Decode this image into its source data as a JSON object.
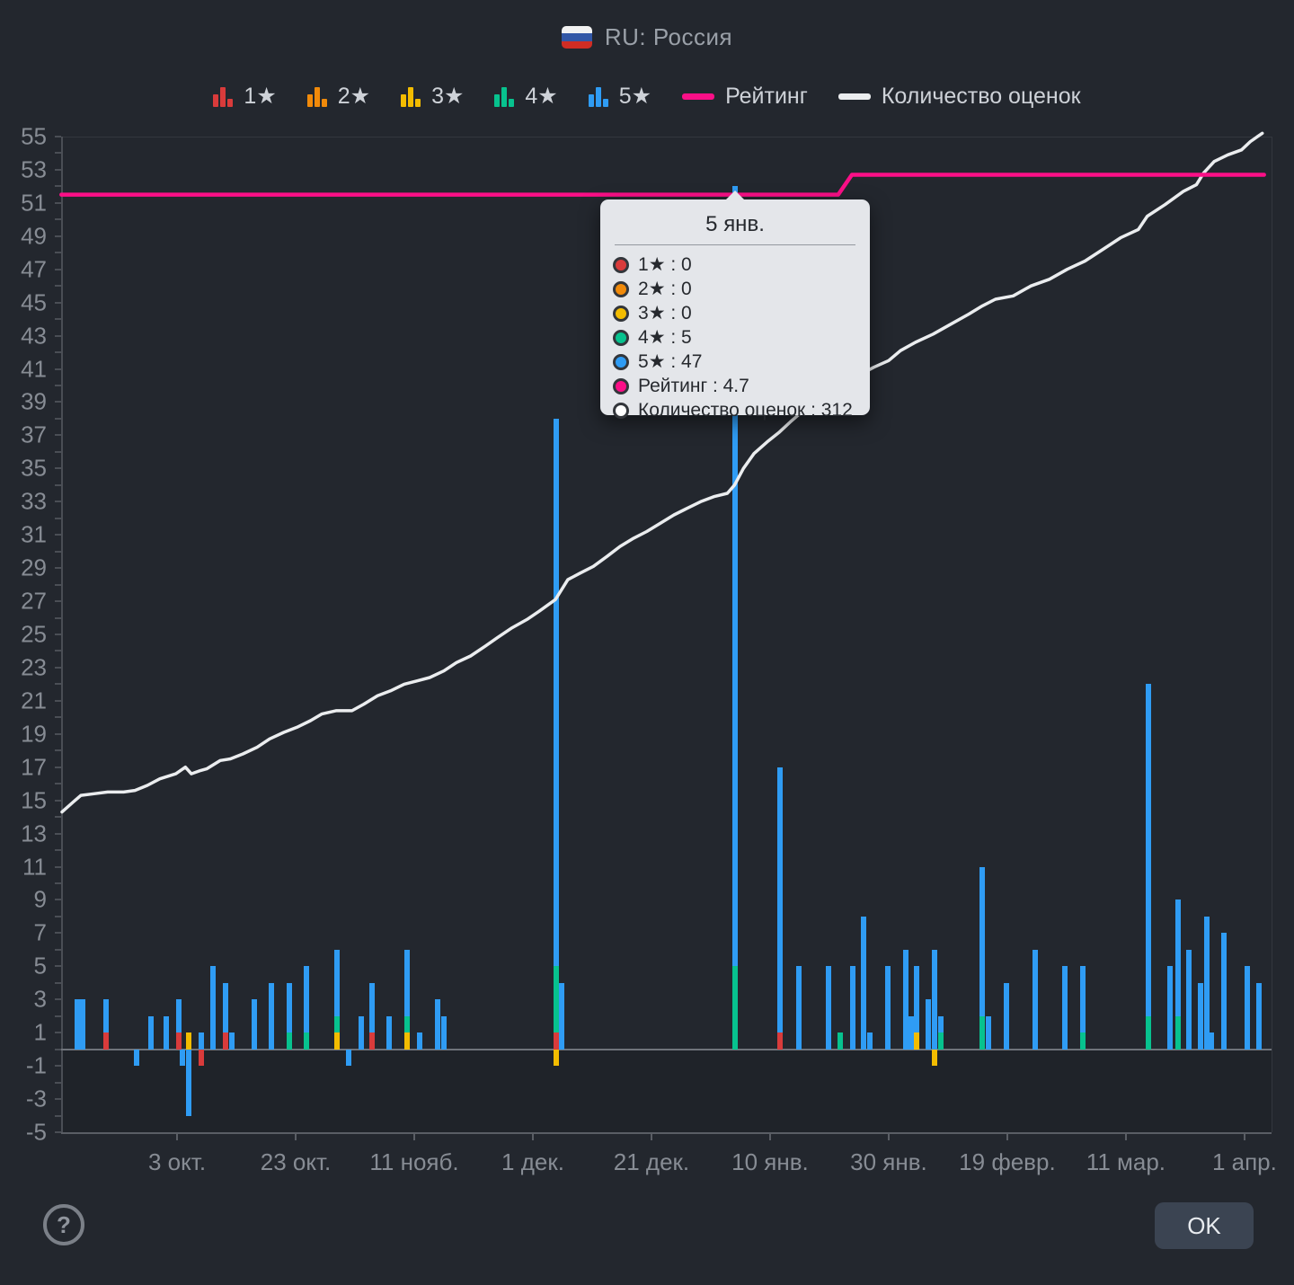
{
  "header": {
    "title": "RU: Россия",
    "flag_colors": [
      "#f2f2f2",
      "#3257a6",
      "#d02d24"
    ]
  },
  "legend": {
    "star_series": [
      {
        "label": "1★",
        "color": "#d93b3b"
      },
      {
        "label": "2★",
        "color": "#f18a0a"
      },
      {
        "label": "3★",
        "color": "#f3bc00"
      },
      {
        "label": "4★",
        "color": "#07c28e"
      },
      {
        "label": "5★",
        "color": "#2f9cf4"
      }
    ],
    "line_series": [
      {
        "label": "Рейтинг",
        "color": "#fb0f87"
      },
      {
        "label": "Количество оценок",
        "color": "#ebedef"
      }
    ]
  },
  "tooltip": {
    "title": "5 янв.",
    "sep": " : ",
    "rows": [
      {
        "label": "1★",
        "value": "0",
        "color": "#d93b3b",
        "hollow": false
      },
      {
        "label": "2★",
        "value": "0",
        "color": "#f18a0a",
        "hollow": false
      },
      {
        "label": "3★",
        "value": "0",
        "color": "#f3bc00",
        "hollow": false
      },
      {
        "label": "4★",
        "value": "5",
        "color": "#07c28e",
        "hollow": false
      },
      {
        "label": "5★",
        "value": "47",
        "color": "#2f9cf4",
        "hollow": false
      },
      {
        "label": "Рейтинг",
        "value": "4.7",
        "color": "#fb0f87",
        "hollow": false
      },
      {
        "label": "Количество оценок",
        "value": "312",
        "color": "#ffffff",
        "hollow": true
      }
    ]
  },
  "footer": {
    "ok_label": "OK",
    "help_glyph": "?"
  },
  "chart_data": {
    "type": "mixed: stacked bar (daily ratings by star) + line (rating) + line (cumulative rating count)",
    "y_axis": {
      "min": -5,
      "max": 55,
      "label_step": 2,
      "minor_step": 1,
      "labels": [
        "55",
        "53",
        "51",
        "49",
        "47",
        "45",
        "43",
        "41",
        "39",
        "37",
        "35",
        "33",
        "31",
        "29",
        "27",
        "25",
        "23",
        "21",
        "19",
        "17",
        "15",
        "13",
        "11",
        "9",
        "7",
        "5",
        "3",
        "1",
        "-1",
        "-3",
        "-5"
      ]
    },
    "x_axis": {
      "note": "day slots, slot 0 = 14 сент., one tick per 20 slots",
      "ticks": [
        {
          "day": 19,
          "label": "3 окт."
        },
        {
          "day": 39,
          "label": "23 окт."
        },
        {
          "day": 59,
          "label": "11 нояб."
        },
        {
          "day": 79,
          "label": "1 дек."
        },
        {
          "day": 99,
          "label": "21 дек."
        },
        {
          "day": 119,
          "label": "10 янв."
        },
        {
          "day": 139,
          "label": "30 янв."
        },
        {
          "day": 159,
          "label": "19 февр."
        },
        {
          "day": 179,
          "label": "11 мар."
        },
        {
          "day": 199,
          "label": "1 апр."
        }
      ]
    },
    "bar_colors": [
      "#d93b3b",
      "#f18a0a",
      "#f3bc00",
      "#07c28e",
      "#2f9cf4"
    ],
    "bar_series_labels": [
      "1★",
      "2★",
      "3★",
      "4★",
      "5★"
    ],
    "bars": [
      {
        "day": 2.2,
        "date": "16 сент.",
        "counts": [
          0,
          0,
          0,
          0,
          3
        ]
      },
      {
        "day": 3.1,
        "date": "17 сент.",
        "counts": [
          0,
          0,
          0,
          0,
          3
        ]
      },
      {
        "day": 7,
        "date": "21 сент.",
        "counts": [
          1,
          0,
          0,
          0,
          2
        ]
      },
      {
        "day": 12.2,
        "date": "26 сент.",
        "counts": [
          0,
          0,
          0,
          0,
          -1
        ]
      },
      {
        "day": 14.6,
        "date": "29 сент.",
        "counts": [
          0,
          0,
          0,
          0,
          2
        ]
      },
      {
        "day": 17.2,
        "date": "1 окт.",
        "counts": [
          0,
          0,
          0,
          0,
          2
        ]
      },
      {
        "day": 19.3,
        "date": "3 окт.",
        "counts": [
          1,
          0,
          0,
          0,
          2
        ]
      },
      {
        "day": 19.9,
        "date": "4 окт.",
        "counts": [
          0,
          0,
          0,
          0,
          -1
        ]
      },
      {
        "day": 21,
        "date": "5 окт.",
        "counts": [
          0,
          0,
          1,
          0,
          -4
        ]
      },
      {
        "day": 23.1,
        "date": "7 окт.",
        "counts": [
          -1,
          0,
          0,
          0,
          1
        ]
      },
      {
        "day": 25.1,
        "date": "9 окт.",
        "counts": [
          0,
          0,
          0,
          0,
          5
        ]
      },
      {
        "day": 27.2,
        "date": "11 окт.",
        "counts": [
          1,
          0,
          0,
          0,
          3
        ]
      },
      {
        "day": 28.2,
        "date": "12 окт.",
        "counts": [
          0,
          0,
          0,
          0,
          1
        ]
      },
      {
        "day": 32,
        "date": "16 окт.",
        "counts": [
          0,
          0,
          0,
          0,
          3
        ]
      },
      {
        "day": 34.9,
        "date": "19 окт.",
        "counts": [
          0,
          0,
          0,
          0,
          4
        ]
      },
      {
        "day": 37.9,
        "date": "22 окт.",
        "counts": [
          0,
          0,
          0,
          1,
          3
        ]
      },
      {
        "day": 40.8,
        "date": "25 окт.",
        "counts": [
          0,
          0,
          0,
          1,
          4
        ]
      },
      {
        "day": 46,
        "date": "30 окт.",
        "counts": [
          0,
          0,
          1,
          1,
          4
        ]
      },
      {
        "day": 47.9,
        "date": "1 нояб.",
        "counts": [
          0,
          0,
          0,
          0,
          -1
        ]
      },
      {
        "day": 50.1,
        "date": "3 нояб.",
        "counts": [
          0,
          0,
          0,
          0,
          2
        ]
      },
      {
        "day": 51.9,
        "date": "5 нояб.",
        "counts": [
          1,
          0,
          0,
          0,
          3
        ]
      },
      {
        "day": 54.8,
        "date": "8 нояб.",
        "counts": [
          0,
          0,
          0,
          0,
          2
        ]
      },
      {
        "day": 57.8,
        "date": "11 нояб.",
        "counts": [
          0,
          0,
          1,
          1,
          4
        ]
      },
      {
        "day": 59.9,
        "date": "13 нояб.",
        "counts": [
          0,
          0,
          0,
          0,
          1
        ]
      },
      {
        "day": 62.9,
        "date": "16 нояб.",
        "counts": [
          0,
          0,
          0,
          0,
          3
        ]
      },
      {
        "day": 64,
        "date": "17 нояб.",
        "counts": [
          0,
          0,
          0,
          0,
          2
        ]
      },
      {
        "day": 82.9,
        "date": "6 дек.",
        "counts": [
          1,
          0,
          -1,
          4,
          33
        ]
      },
      {
        "day": 83.8,
        "date": "7 дек.",
        "counts": [
          0,
          0,
          0,
          0,
          4
        ]
      },
      {
        "day": 113.1,
        "date": "5 янв.",
        "counts": [
          0,
          0,
          0,
          5,
          47
        ]
      },
      {
        "day": 120.7,
        "date": "13 янв.",
        "counts": [
          1,
          0,
          0,
          0,
          16
        ]
      },
      {
        "day": 123.8,
        "date": "16 янв.",
        "counts": [
          0,
          0,
          0,
          0,
          5
        ]
      },
      {
        "day": 128.8,
        "date": "21 янв.",
        "counts": [
          0,
          0,
          0,
          0,
          5
        ]
      },
      {
        "day": 130.8,
        "date": "23 янв.",
        "counts": [
          0,
          0,
          0,
          1,
          0
        ]
      },
      {
        "day": 132.9,
        "date": "25 янв.",
        "counts": [
          0,
          0,
          0,
          0,
          5
        ]
      },
      {
        "day": 134.8,
        "date": "27 янв.",
        "counts": [
          0,
          0,
          0,
          0,
          8
        ]
      },
      {
        "day": 135.8,
        "date": "28 янв.",
        "counts": [
          0,
          0,
          0,
          0,
          1
        ]
      },
      {
        "day": 138.8,
        "date": "31 янв.",
        "counts": [
          0,
          0,
          0,
          0,
          5
        ]
      },
      {
        "day": 141.9,
        "date": "3 февр.",
        "counts": [
          0,
          0,
          0,
          0,
          6
        ]
      },
      {
        "day": 142.8,
        "date": "4 февр.",
        "counts": [
          0,
          0,
          0,
          0,
          2
        ]
      },
      {
        "day": 143.7,
        "date": "5 февр.",
        "counts": [
          0,
          0,
          1,
          0,
          4
        ]
      },
      {
        "day": 145.7,
        "date": "7 февр.",
        "counts": [
          0,
          0,
          0,
          0,
          3
        ]
      },
      {
        "day": 146.7,
        "date": "8 февр.",
        "counts": [
          0,
          0,
          -1,
          0,
          6
        ]
      },
      {
        "day": 147.8,
        "date": "9 февр.",
        "counts": [
          0,
          0,
          0,
          1,
          1
        ]
      },
      {
        "day": 154.8,
        "date": "16 февр.",
        "counts": [
          0,
          0,
          0,
          2,
          9
        ]
      },
      {
        "day": 155.8,
        "date": "17 февр.",
        "counts": [
          0,
          0,
          0,
          0,
          2
        ]
      },
      {
        "day": 158.8,
        "date": "20 февр.",
        "counts": [
          0,
          0,
          0,
          0,
          4
        ]
      },
      {
        "day": 163.7,
        "date": "25 февр.",
        "counts": [
          0,
          0,
          0,
          0,
          6
        ]
      },
      {
        "day": 168.7,
        "date": "2 мар.",
        "counts": [
          0,
          0,
          0,
          0,
          5
        ]
      },
      {
        "day": 171.7,
        "date": "5 мар.",
        "counts": [
          0,
          0,
          0,
          1,
          4
        ]
      },
      {
        "day": 182.8,
        "date": "16 мар.",
        "counts": [
          0,
          0,
          0,
          2,
          20
        ]
      },
      {
        "day": 186.5,
        "date": "20 мар.",
        "counts": [
          0,
          0,
          0,
          0,
          5
        ]
      },
      {
        "day": 187.8,
        "date": "21 мар.",
        "counts": [
          0,
          0,
          0,
          2,
          7
        ]
      },
      {
        "day": 189.6,
        "date": "23 мар.",
        "counts": [
          0,
          0,
          0,
          0,
          6
        ]
      },
      {
        "day": 191.6,
        "date": "24 мар.",
        "counts": [
          0,
          0,
          0,
          0,
          4
        ]
      },
      {
        "day": 192.6,
        "date": "25 мар.",
        "counts": [
          0,
          0,
          0,
          0,
          8
        ]
      },
      {
        "day": 193.4,
        "date": "26 мар.",
        "counts": [
          0,
          0,
          0,
          0,
          1
        ]
      },
      {
        "day": 195.5,
        "date": "28 мар.",
        "counts": [
          0,
          0,
          0,
          0,
          7
        ]
      },
      {
        "day": 199.4,
        "date": "1 апр.",
        "counts": [
          0,
          0,
          0,
          0,
          5
        ]
      },
      {
        "day": 201.4,
        "date": "3 апр.",
        "counts": [
          0,
          0,
          0,
          0,
          4
        ]
      }
    ],
    "rating_line": {
      "label": "Рейтинг",
      "color": "#fb0f87",
      "rating_before_step": 4.7,
      "rating_after_step": 4.8,
      "points_axis_units": [
        [
          -0.5,
          51.5
        ],
        [
          130.5,
          51.5
        ],
        [
          132.8,
          52.7
        ],
        [
          202.3,
          52.7
        ]
      ]
    },
    "count_line": {
      "label": "Количество оценок",
      "color": "#ebedef",
      "value_at_tooltip_day": 312,
      "points_axis_units": [
        [
          -0.4,
          14.3
        ],
        [
          1.5,
          14.9
        ],
        [
          2.8,
          15.3
        ],
        [
          5,
          15.4
        ],
        [
          7.3,
          15.5
        ],
        [
          10,
          15.5
        ],
        [
          11.9,
          15.6
        ],
        [
          14,
          15.9
        ],
        [
          16.1,
          16.3
        ],
        [
          18.8,
          16.6
        ],
        [
          20.4,
          17.0
        ],
        [
          21.4,
          16.6
        ],
        [
          23,
          16.8
        ],
        [
          24,
          16.9
        ],
        [
          26.3,
          17.4
        ],
        [
          28,
          17.5
        ],
        [
          30.1,
          17.8
        ],
        [
          32.5,
          18.2
        ],
        [
          34.6,
          18.7
        ],
        [
          37,
          19.1
        ],
        [
          39.2,
          19.4
        ],
        [
          41.5,
          19.8
        ],
        [
          43.4,
          20.2
        ],
        [
          45.8,
          20.4
        ],
        [
          48.5,
          20.4
        ],
        [
          50.5,
          20.8
        ],
        [
          52.8,
          21.3
        ],
        [
          55,
          21.6
        ],
        [
          57.3,
          22.0
        ],
        [
          59.5,
          22.2
        ],
        [
          61.6,
          22.4
        ],
        [
          64,
          22.8
        ],
        [
          66.1,
          23.3
        ],
        [
          68.5,
          23.7
        ],
        [
          71,
          24.3
        ],
        [
          73,
          24.8
        ],
        [
          75.5,
          25.4
        ],
        [
          78,
          25.9
        ],
        [
          80.1,
          26.4
        ],
        [
          82.8,
          27.1
        ],
        [
          84.9,
          28.3
        ],
        [
          87,
          28.7
        ],
        [
          89.2,
          29.1
        ],
        [
          91.5,
          29.7
        ],
        [
          93.7,
          30.3
        ],
        [
          96,
          30.8
        ],
        [
          98.2,
          31.2
        ],
        [
          100.5,
          31.7
        ],
        [
          102.8,
          32.2
        ],
        [
          105,
          32.6
        ],
        [
          107.3,
          33.0
        ],
        [
          109.5,
          33.3
        ],
        [
          111.8,
          33.5
        ],
        [
          113,
          34.0
        ],
        [
          114.5,
          35.0
        ],
        [
          116.3,
          35.9
        ],
        [
          118.5,
          36.6
        ],
        [
          120.6,
          37.2
        ],
        [
          122.4,
          37.8
        ],
        [
          124,
          38.3
        ],
        [
          125.4,
          38.7
        ],
        [
          127,
          38.9
        ],
        [
          128.4,
          39.0
        ],
        [
          130,
          39.4
        ],
        [
          131.4,
          39.8
        ],
        [
          133,
          40.2
        ],
        [
          134.4,
          40.7
        ],
        [
          136.5,
          41.1
        ],
        [
          139,
          41.5
        ],
        [
          141,
          42.1
        ],
        [
          143.5,
          42.6
        ],
        [
          146.5,
          43.1
        ],
        [
          149.5,
          43.7
        ],
        [
          152.5,
          44.3
        ],
        [
          154.8,
          44.8
        ],
        [
          157,
          45.2
        ],
        [
          160,
          45.4
        ],
        [
          163,
          46.0
        ],
        [
          166.1,
          46.4
        ],
        [
          169.1,
          47.0
        ],
        [
          172.1,
          47.5
        ],
        [
          175.1,
          48.2
        ],
        [
          178.1,
          48.9
        ],
        [
          181.1,
          49.4
        ],
        [
          182.6,
          50.2
        ],
        [
          185.6,
          50.9
        ],
        [
          188.7,
          51.7
        ],
        [
          190.9,
          52.1
        ],
        [
          192.1,
          52.8
        ],
        [
          193.9,
          53.5
        ],
        [
          196.2,
          53.9
        ],
        [
          198.5,
          54.2
        ],
        [
          200,
          54.7
        ],
        [
          202,
          55.2
        ]
      ]
    },
    "hovered_bar_day": 113.1
  }
}
